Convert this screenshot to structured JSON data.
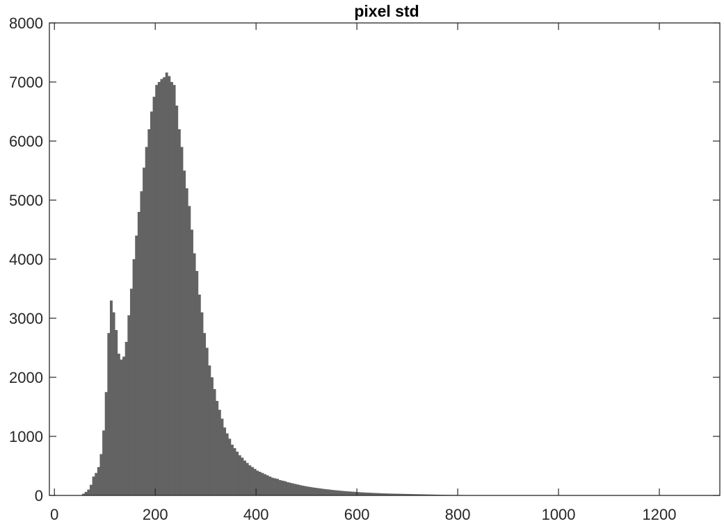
{
  "colors": {
    "bar": "#636363",
    "axis": "#262626",
    "background": "#ffffff"
  },
  "chart_data": {
    "type": "bar",
    "title": "pixel std",
    "xlabel": "",
    "ylabel": "",
    "xlim": [
      -10,
      1320
    ],
    "ylim": [
      0,
      8000
    ],
    "x_ticks": [
      0,
      200,
      400,
      600,
      800,
      1000,
      1200
    ],
    "y_ticks": [
      0,
      1000,
      2000,
      3000,
      4000,
      5000,
      6000,
      7000,
      8000
    ],
    "grid": false,
    "legend": "none",
    "bin_start": 55,
    "bin_width": 5,
    "values": [
      30,
      60,
      100,
      180,
      320,
      380,
      480,
      700,
      1100,
      1750,
      2750,
      3300,
      3100,
      2800,
      2400,
      2300,
      2350,
      2600,
      3050,
      3500,
      4000,
      4400,
      4800,
      5150,
      5550,
      5900,
      6200,
      6500,
      6750,
      6950,
      7000,
      7050,
      7080,
      7160,
      7100,
      7000,
      6950,
      6600,
      6200,
      5900,
      5500,
      5200,
      4900,
      4500,
      4100,
      3800,
      3400,
      3100,
      2750,
      2500,
      2200,
      2000,
      1800,
      1600,
      1450,
      1300,
      1150,
      1050,
      960,
      860,
      800,
      740,
      680,
      640,
      590,
      550,
      510,
      480,
      450,
      420,
      400,
      380,
      360,
      340,
      320,
      300,
      290,
      280,
      260,
      250,
      240,
      225,
      215,
      205,
      195,
      185,
      175,
      165,
      158,
      150,
      143,
      136,
      130,
      124,
      118,
      112,
      107,
      102,
      97,
      92,
      88,
      84,
      80,
      76,
      72,
      69,
      66,
      63,
      60,
      57,
      54,
      51,
      49,
      47,
      45,
      43,
      41,
      39,
      37,
      35,
      34,
      32,
      31,
      30,
      29,
      28,
      27,
      26,
      25,
      24,
      23,
      22,
      21,
      20,
      19,
      18,
      17,
      16,
      15,
      14,
      13,
      12,
      11,
      10,
      10,
      9,
      9,
      8,
      8,
      7,
      7,
      6,
      6,
      5,
      5,
      5,
      4,
      4,
      4,
      3,
      3,
      3,
      2,
      2,
      2,
      2,
      2,
      1,
      1,
      1
    ]
  }
}
